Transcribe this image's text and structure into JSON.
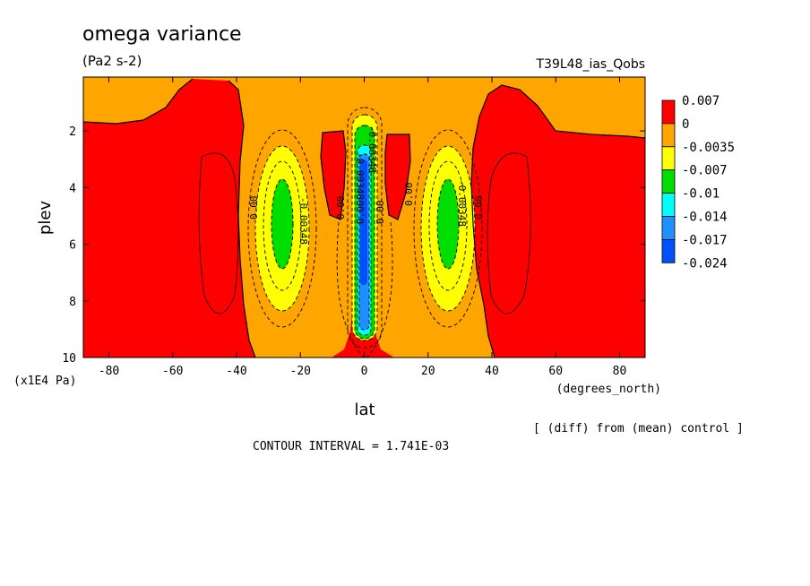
{
  "chart_data": {
    "type": "heatmap",
    "title": "omega variance",
    "units": "(Pa2 s-2)",
    "run_label": "T39L48_ias_Qobs",
    "xlabel": "lat",
    "x_units": "(degrees_north)",
    "ylabel": "plev",
    "y_units": "(x1E4 Pa)",
    "xlim": [
      -88,
      88
    ],
    "ylim": [
      10,
      0.1
    ],
    "x_ticks": [
      "-80",
      "-60",
      "-40",
      "-20",
      "0",
      "20",
      "40",
      "60",
      "80"
    ],
    "y_ticks": [
      "2",
      "4",
      "6",
      "8",
      "10"
    ],
    "colorbar": {
      "levels": [
        "0.007",
        "0",
        "-0.0035",
        "-0.007",
        "-0.01",
        "-0.014",
        "-0.017",
        "-0.024"
      ],
      "colors": [
        "#ff0000",
        "#ffa500",
        "#ffff00",
        "#00dd00",
        "#00ffff",
        "#1e90ff",
        "#0050ff"
      ]
    },
    "contour_labels": [
      "0.00",
      "-0.00348",
      "0.00",
      "-0.00348",
      "0.00",
      "0.00",
      "-0.00348",
      "0.00",
      "-0.00348",
      "0.00"
    ],
    "footer_note": "[ (diff) from (mean) control ]",
    "contour_interval": "CONTOUR INTERVAL = 1.741E-03"
  }
}
